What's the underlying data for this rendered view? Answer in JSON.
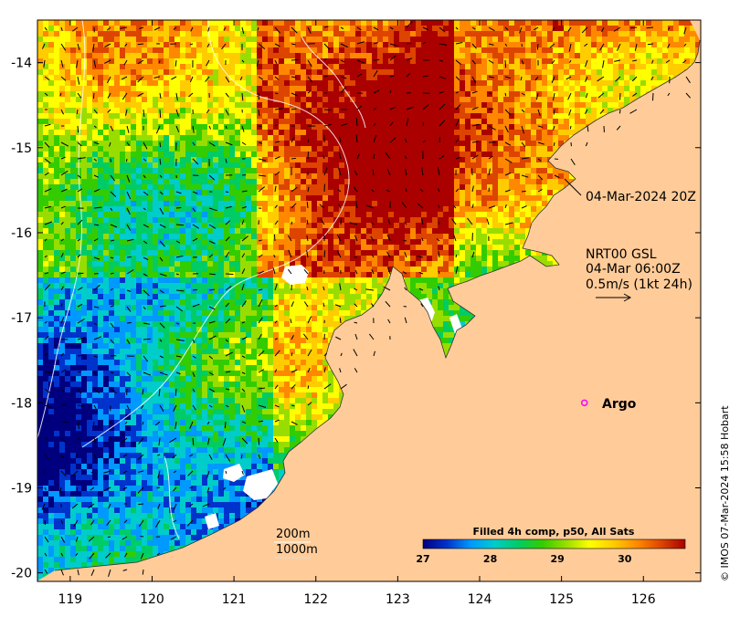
{
  "map": {
    "lon_range": [
      118.6,
      126.7
    ],
    "lat_range": [
      -20.1,
      -13.5
    ],
    "lon_ticks": [
      119,
      120,
      121,
      122,
      123,
      124,
      125,
      126
    ],
    "lat_ticks": [
      -14,
      -15,
      -16,
      -17,
      -18,
      -19,
      -20
    ],
    "land_color": "#FFCC99",
    "ocean_field": "sea surface temperature mosaic"
  },
  "labels": {
    "timestamp_label": "04-Mar-2024 20Z",
    "current_title": "NRT00 GSL",
    "current_time": "04-Mar 06:00Z",
    "current_scale": "0.5m/s (1kt 24h)",
    "argo_label": "Argo",
    "contour_200": "200m",
    "contour_1000": "1000m",
    "credit": "© IMOS 07-Mar-2024 15:58 Hobart"
  },
  "argo_float": {
    "lon": 125.28,
    "lat": -18.0,
    "color": "#FF00FF"
  },
  "colorbar": {
    "title": "Filled 4h comp, p50, All Sats",
    "ticks": [
      27,
      28,
      29,
      30
    ],
    "range": [
      27.0,
      30.9
    ],
    "colors": [
      "#00007F",
      "#0033CC",
      "#0099FF",
      "#00CCCC",
      "#00CC66",
      "#33CC00",
      "#99DD00",
      "#FFFF00",
      "#FFCC00",
      "#FF8800",
      "#DD4400",
      "#AA0000"
    ]
  }
}
